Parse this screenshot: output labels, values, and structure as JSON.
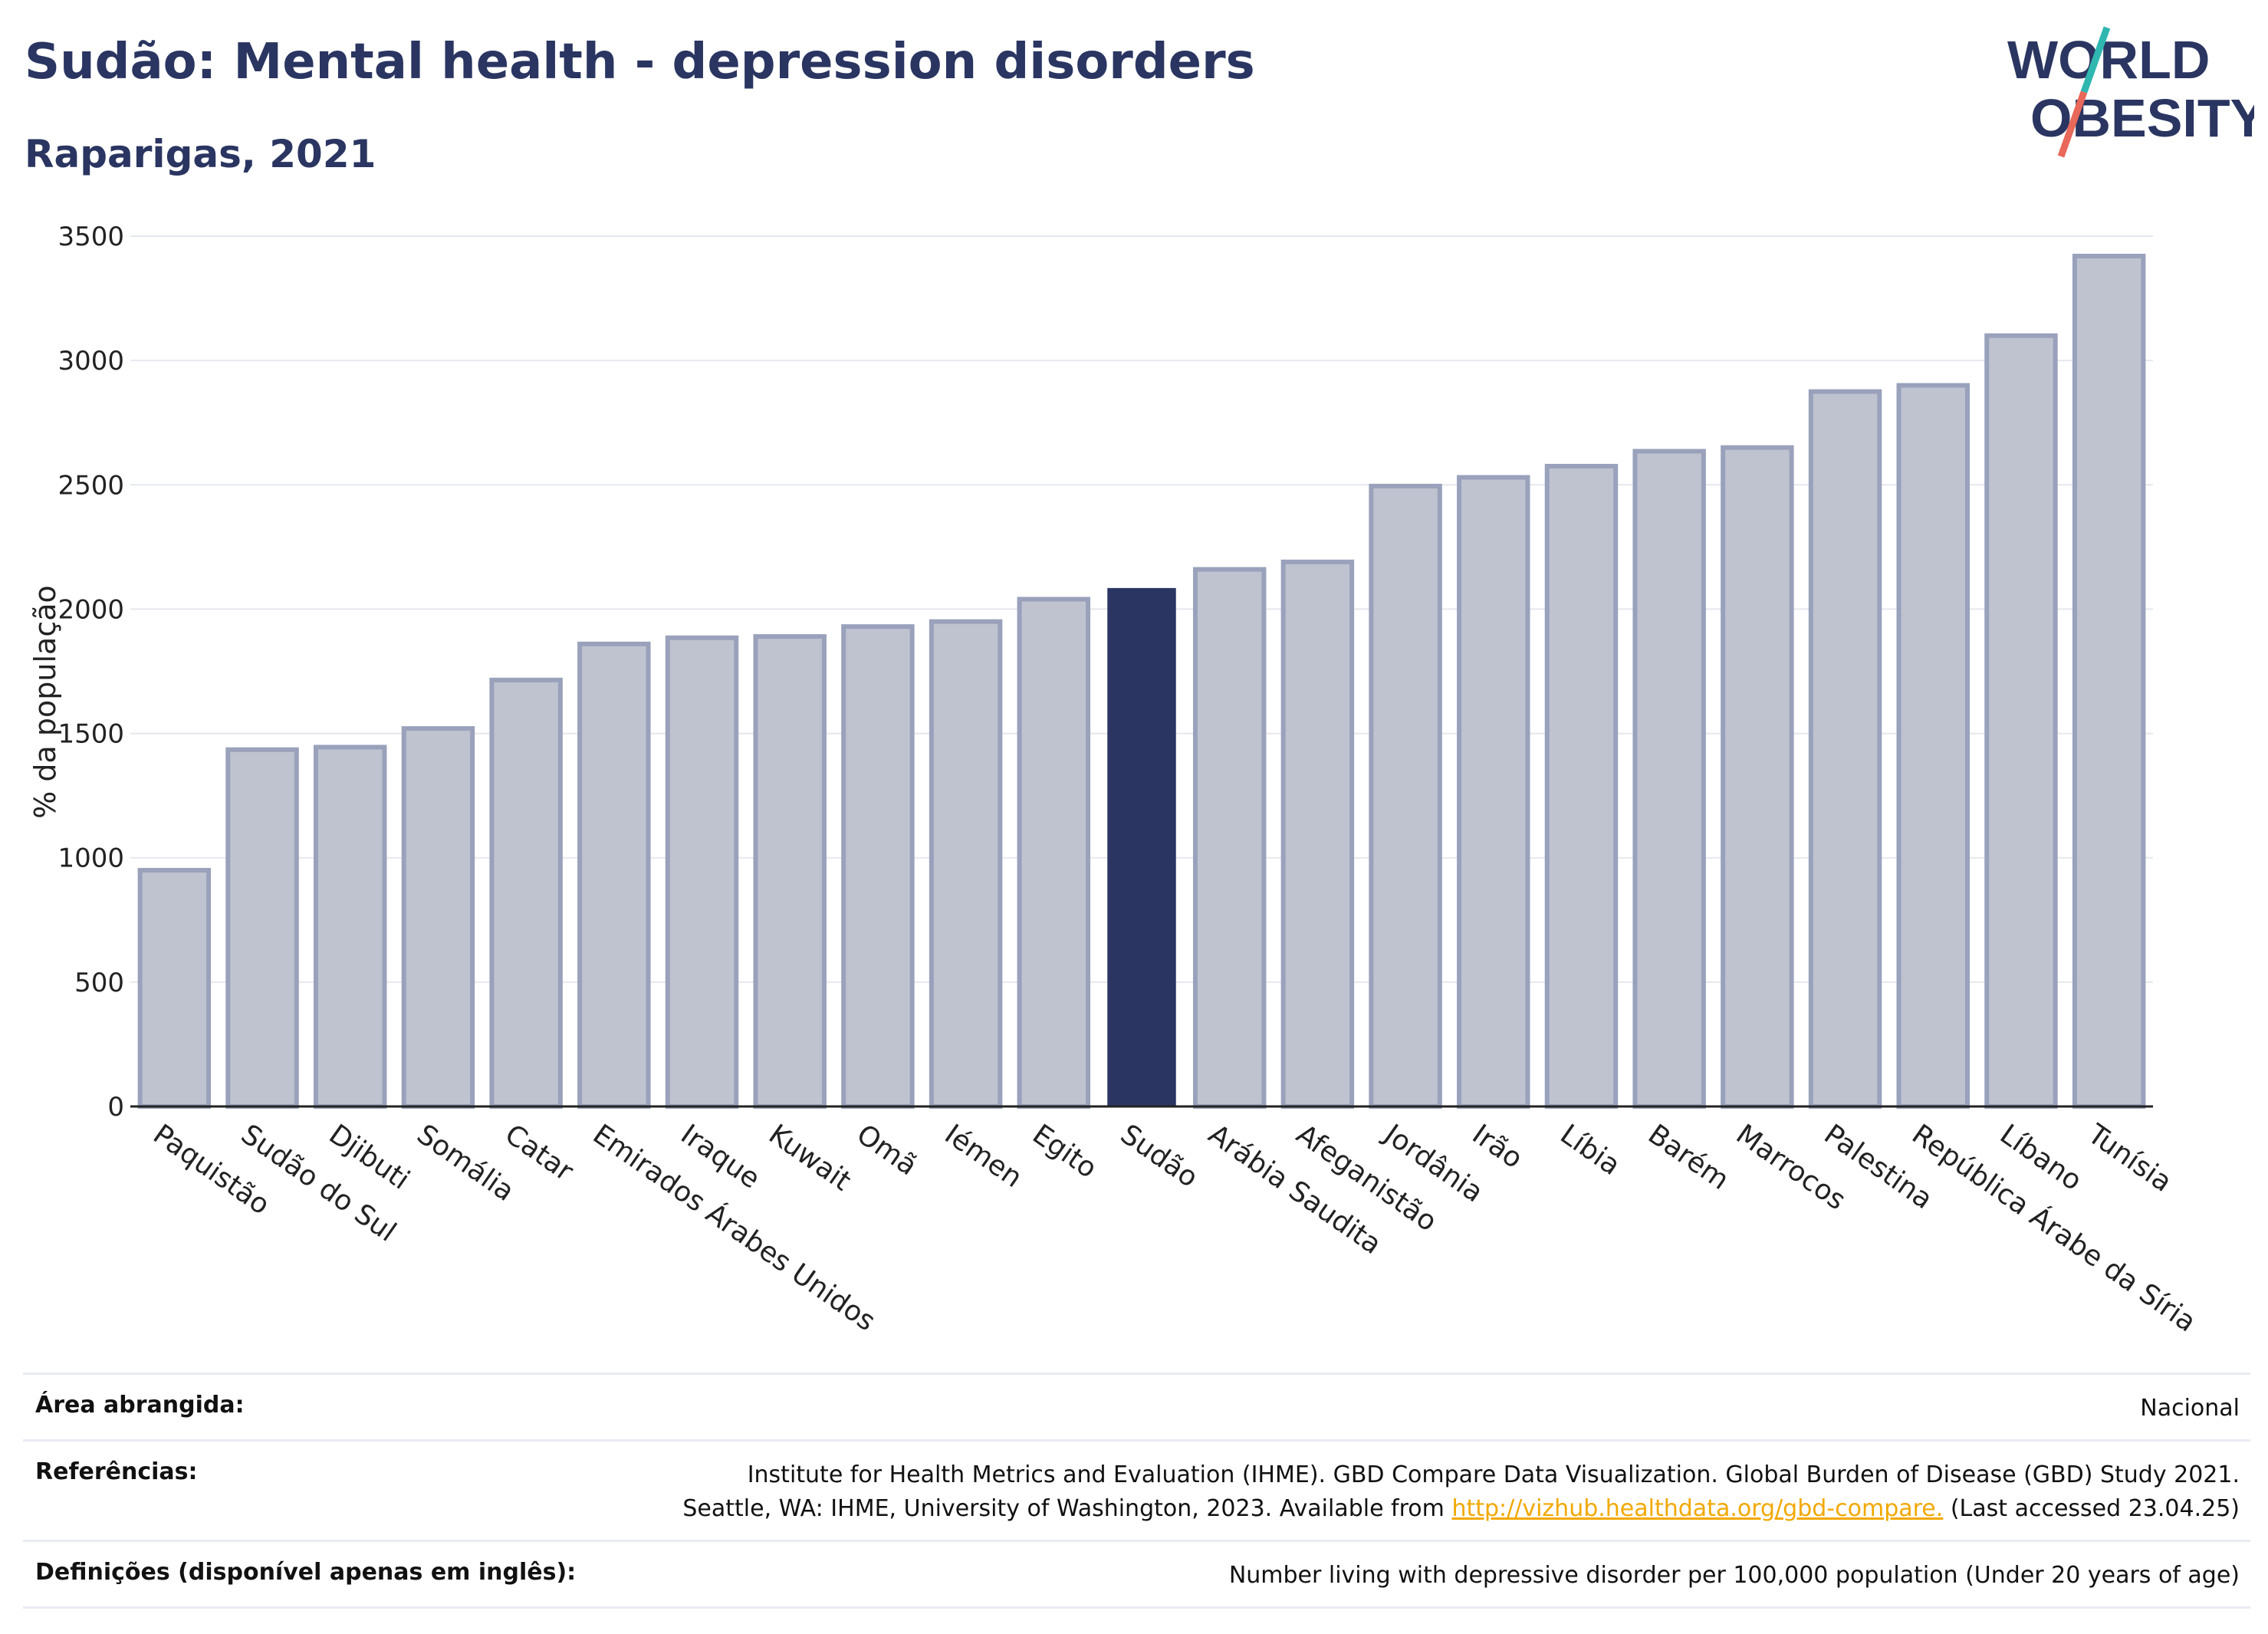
{
  "header": {
    "title": "Sudão: Mental health - depression disorders",
    "subtitle": "Raparigas, 2021"
  },
  "logo": {
    "line1": "WORLD",
    "line2": "OBESITY",
    "colors": {
      "text": "#2a3561",
      "slash_teal": "#2fb7b0",
      "slash_coral": "#e8685a"
    }
  },
  "colors": {
    "bar": "#bfc3d0",
    "bar_stroke": "#9aa1bb",
    "highlight": "#2a3561",
    "grid": "#e6e8ee",
    "axis": "#222222"
  },
  "chart_data": {
    "type": "bar",
    "title": "Sudão: Mental health - depression disorders",
    "subtitle": "Raparigas, 2021",
    "xlabel": "",
    "ylabel": "% da população",
    "ylim": [
      0,
      3500
    ],
    "yticks": [
      0,
      500,
      1000,
      1500,
      2000,
      2500,
      3000,
      3500
    ],
    "grid": true,
    "highlight": "Sudão",
    "categories": [
      "Paquistão",
      "Sudão do Sul",
      "Djibuti",
      "Somália",
      "Catar",
      "Emirados Árabes Unidos",
      "Iraque",
      "Kuwait",
      "Omã",
      "Iémen",
      "Egito",
      "Sudão",
      "Arábia Saudita",
      "Afeganistão",
      "Jordânia",
      "Irão",
      "Líbia",
      "Barém",
      "Marrocos",
      "Palestina",
      "República Árabe da Síria",
      "Líbano",
      "Tunísia"
    ],
    "values": [
      950,
      1435,
      1445,
      1520,
      1715,
      1860,
      1885,
      1890,
      1930,
      1950,
      2040,
      2085,
      2160,
      2190,
      2495,
      2530,
      2575,
      2635,
      2650,
      2875,
      2900,
      3100,
      3420
    ]
  },
  "footer": {
    "area_label": "Área abrangida:",
    "area_value": "Nacional",
    "refs_label": "Referências:",
    "refs_line1": "Institute for Health Metrics and Evaluation (IHME). GBD Compare Data Visualization. Global Burden of Disease (GBD) Study 2021.",
    "refs_line2_pre": "Seattle, WA: IHME, University of Washington, 2023. Available from",
    "refs_link": "http://vizhub.healthdata.org/gbd-compare.",
    "refs_line2_post": "(Last accessed 23.04.25)",
    "defs_label": "Definições (disponível apenas em inglês):",
    "defs_value": "Number living with depressive disorder per 100,000 population (Under 20 years of age)"
  }
}
